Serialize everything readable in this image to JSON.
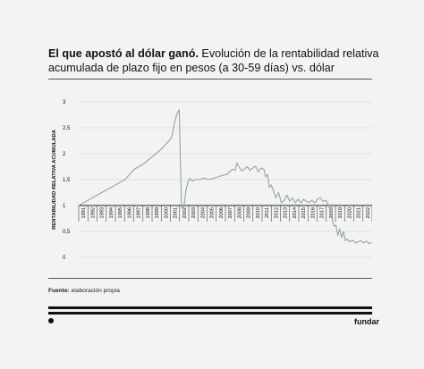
{
  "header": {
    "title_bold": "El que apostó al dólar ganó.",
    "title_rest": " Evolución de la rentabilidad relativa acumulada de plazo fijo en pesos (a 30-59 días) vs. dólar"
  },
  "footer": {
    "source_label": "Fuente:",
    "source_text": " elaboración propia",
    "brand": "fundar"
  },
  "colors": {
    "background": "#f3f3f2",
    "line": "#8fa89a",
    "grid": "#dddddd",
    "text": "#111111"
  },
  "chart_data": {
    "type": "line",
    "title": "",
    "xlabel": "",
    "ylabel": "RENTABILIDAD RELATIVA ACUMULADA",
    "ylim": [
      0,
      3
    ],
    "xlim": [
      1991,
      2022.7
    ],
    "yticks": [
      0,
      0.5,
      1,
      1.5,
      2,
      2.5,
      3
    ],
    "ytick_labels": [
      "0",
      "0,5",
      "1",
      "1,5",
      "2",
      "2,5",
      "3"
    ],
    "xtick_labels": [
      "1991",
      "1992",
      "1993",
      "1994",
      "1995",
      "1996",
      "1997",
      "1998",
      "1999",
      "2000",
      "2001",
      "2002",
      "2003",
      "2004",
      "2005",
      "2006",
      "2007",
      "2008",
      "2009",
      "2010",
      "2011",
      "2012",
      "2013",
      "2014",
      "2015",
      "2016",
      "2017",
      "2018",
      "2019",
      "2020",
      "2021",
      "2022"
    ],
    "grid": true,
    "series": [
      {
        "x": [
          1991,
          1992,
          1993,
          1994,
          1995,
          1995.5,
          1996,
          1997,
          1998,
          1999,
          2000,
          2000.5,
          2001,
          2001.15,
          2001.3,
          2001.5,
          2001.7,
          2001.85,
          2002,
          2002.1,
          2002.25,
          2002.4,
          2002.6,
          2002.8,
          2003,
          2003.3,
          2003.6,
          2004,
          2004.5,
          2005,
          2005.5,
          2006,
          2006.5,
          2007,
          2007.3,
          2007.6,
          2007.9,
          2008.1,
          2008.3,
          2008.6,
          2008.9,
          2009.2,
          2009.5,
          2009.8,
          2010.1,
          2010.4,
          2010.7,
          2011,
          2011.2,
          2011.4,
          2011.6,
          2011.8,
          2012,
          2012.3,
          2012.6,
          2012.9,
          2013.2,
          2013.5,
          2013.8,
          2014.1,
          2014.4,
          2014.7,
          2015,
          2015.3,
          2015.6,
          2015.9,
          2016.2,
          2016.5,
          2016.8,
          2017.1,
          2017.4,
          2017.7,
          2018,
          2018.2,
          2018.4,
          2018.6,
          2018.8,
          2019,
          2019.2,
          2019.4,
          2019.6,
          2019.8,
          2020,
          2020.3,
          2020.6,
          2020.9,
          2021.2,
          2021.5,
          2021.8,
          2022.1,
          2022.4,
          2022.6
        ],
        "y": [
          1.0,
          1.1,
          1.2,
          1.3,
          1.4,
          1.45,
          1.5,
          1.7,
          1.8,
          1.95,
          2.1,
          2.2,
          2.3,
          2.4,
          2.55,
          2.7,
          2.8,
          2.85,
          1.8,
          1.0,
          0.92,
          1.02,
          1.3,
          1.45,
          1.52,
          1.47,
          1.5,
          1.5,
          1.53,
          1.5,
          1.52,
          1.55,
          1.58,
          1.6,
          1.65,
          1.7,
          1.68,
          1.82,
          1.75,
          1.67,
          1.7,
          1.75,
          1.68,
          1.72,
          1.76,
          1.65,
          1.72,
          1.7,
          1.55,
          1.6,
          1.35,
          1.4,
          1.3,
          1.15,
          1.25,
          1.05,
          1.1,
          1.2,
          1.08,
          1.15,
          1.05,
          1.12,
          1.05,
          1.12,
          1.08,
          1.06,
          1.1,
          1.05,
          1.12,
          1.15,
          1.08,
          1.1,
          1.0,
          0.88,
          0.72,
          0.6,
          0.62,
          0.42,
          0.55,
          0.38,
          0.5,
          0.32,
          0.35,
          0.3,
          0.33,
          0.28,
          0.3,
          0.32,
          0.28,
          0.31,
          0.26,
          0.29
        ]
      }
    ]
  }
}
